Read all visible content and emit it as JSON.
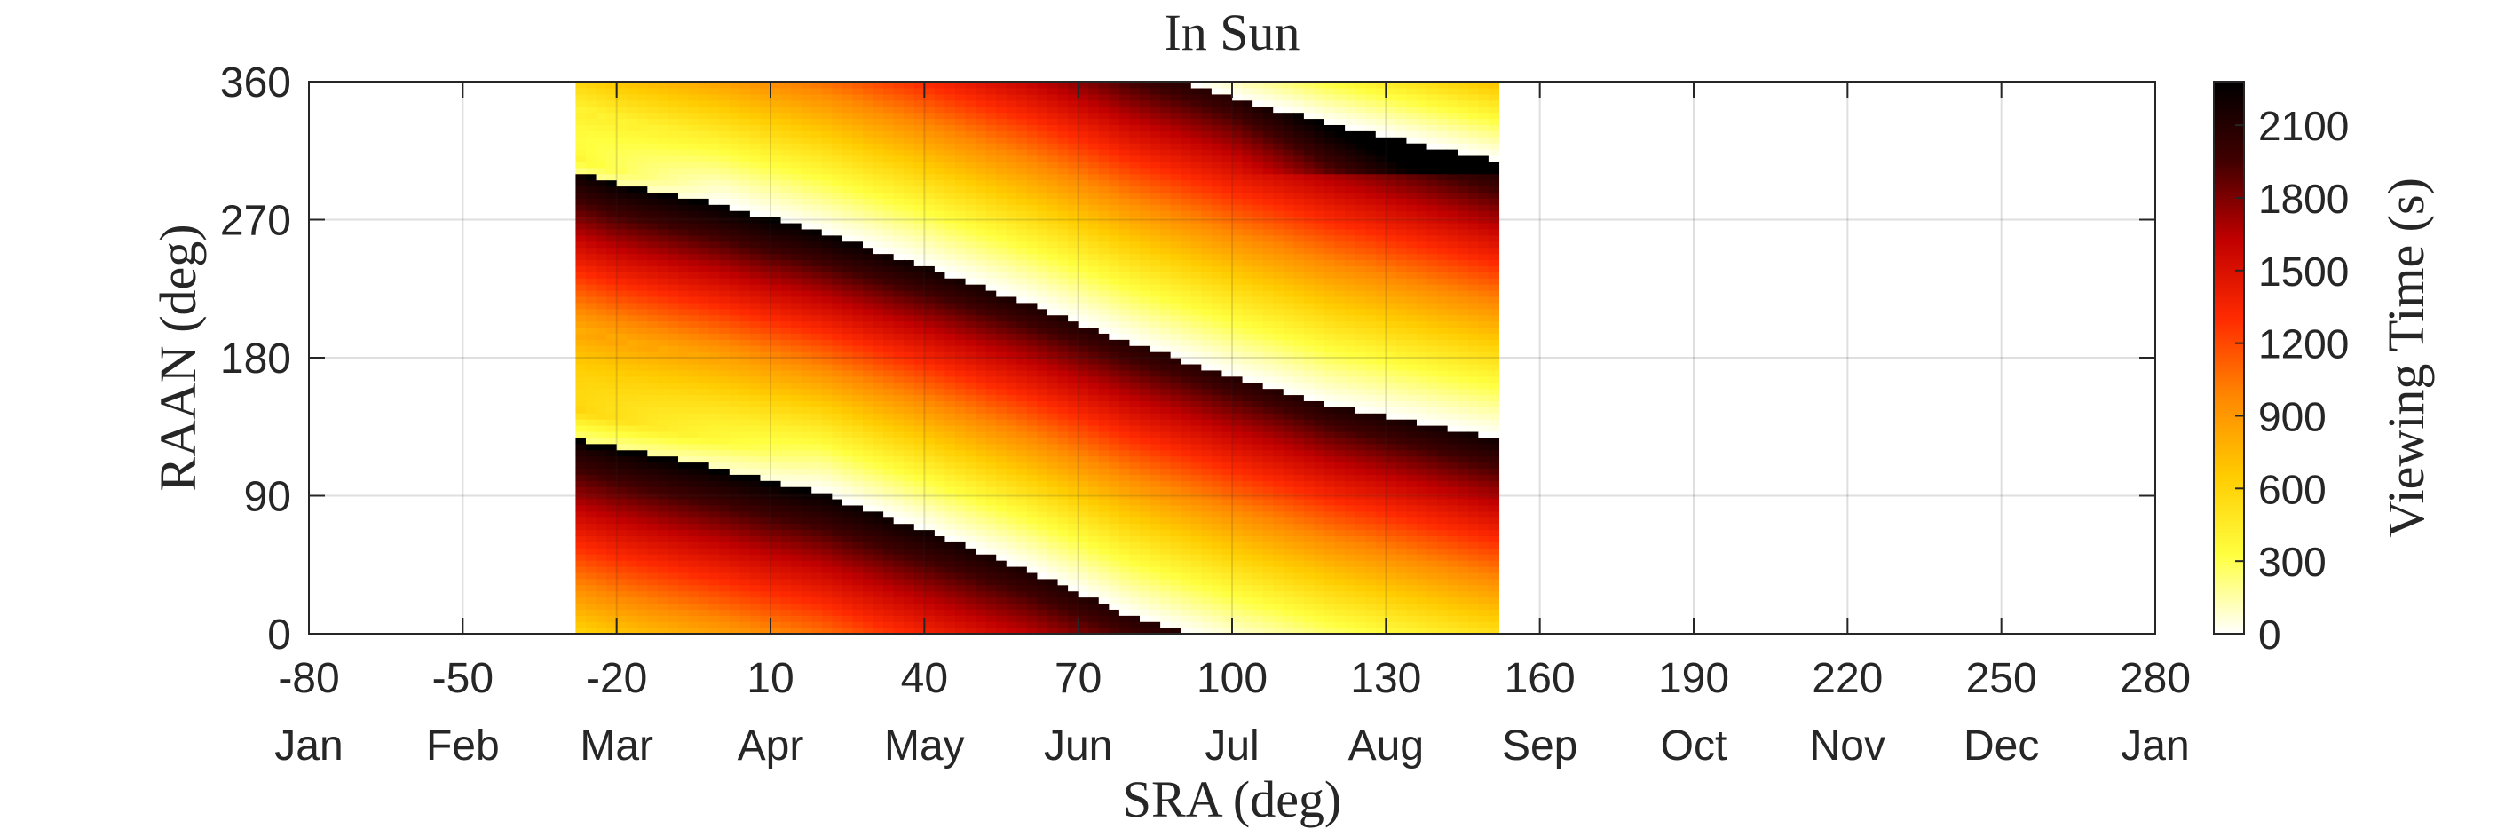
{
  "chart_data": {
    "type": "heatmap",
    "title": "In Sun",
    "xlabel": "SRA (deg)",
    "ylabel": "RAAN (deg)",
    "colorbar_label": "Viewing Time (s)",
    "xlim": [
      -80,
      280
    ],
    "ylim": [
      0,
      360
    ],
    "x_ticks": [
      -80,
      -50,
      -20,
      10,
      40,
      70,
      100,
      130,
      160,
      190,
      220,
      250,
      280
    ],
    "x_tick_labels": [
      "-80",
      "-50",
      "-20",
      "10",
      "40",
      "70",
      "100",
      "130",
      "160",
      "190",
      "220",
      "250",
      "280"
    ],
    "month_labels": [
      "Jan",
      "Feb",
      "Mar",
      "Apr",
      "May",
      "Jun",
      "Jul",
      "Aug",
      "Sep",
      "Oct",
      "Nov",
      "Dec",
      "Jan"
    ],
    "y_ticks": [
      0,
      90,
      180,
      270,
      360
    ],
    "y_tick_labels": [
      "0",
      "90",
      "180",
      "270",
      "360"
    ],
    "colorbar_ticks": [
      0,
      300,
      600,
      900,
      1200,
      1500,
      1800,
      2100
    ],
    "colorbar_tick_labels": [
      "0",
      "300",
      "600",
      "900",
      "1200",
      "1500",
      "1800",
      "2100"
    ],
    "colorbar_range": [
      0,
      2280
    ],
    "colormap": "hot-reversed",
    "colormap_stops": [
      "#ffffff",
      "#ffff40",
      "#ffcc00",
      "#ff8800",
      "#ff2a00",
      "#c00000",
      "#400000",
      "#000000"
    ],
    "grid": true,
    "data_x_range": [
      -28,
      152
    ],
    "data_y_range": [
      0,
      360
    ],
    "ridges": [
      {
        "x": [
          -28,
          -20,
          0,
          20,
          40,
          60,
          80,
          100,
          120,
          152
        ],
        "y": [
          -58,
          -66,
          -80,
          -98,
          -128,
          -152,
          -178,
          -201,
          -220,
          -240
        ]
      },
      {
        "x": [
          -28,
          -20,
          0,
          20,
          40,
          60,
          80,
          100,
          120,
          152
        ],
        "y": [
          128,
          122,
          108,
          92,
          68,
          42,
          12,
          -10,
          -28,
          -52
        ]
      },
      {
        "x": [
          -28,
          -20,
          0,
          20,
          40,
          60,
          80,
          100,
          120,
          152
        ],
        "y": [
          302,
          294,
          280,
          262,
          240,
          216,
          190,
          168,
          148,
          128
        ]
      },
      {
        "x": [
          -28,
          -20,
          0,
          20,
          40,
          60,
          80,
          100,
          120,
          152
        ],
        "y": [
          488,
          482,
          468,
          452,
          428,
          402,
          372,
          350,
          332,
          308
        ]
      }
    ]
  }
}
